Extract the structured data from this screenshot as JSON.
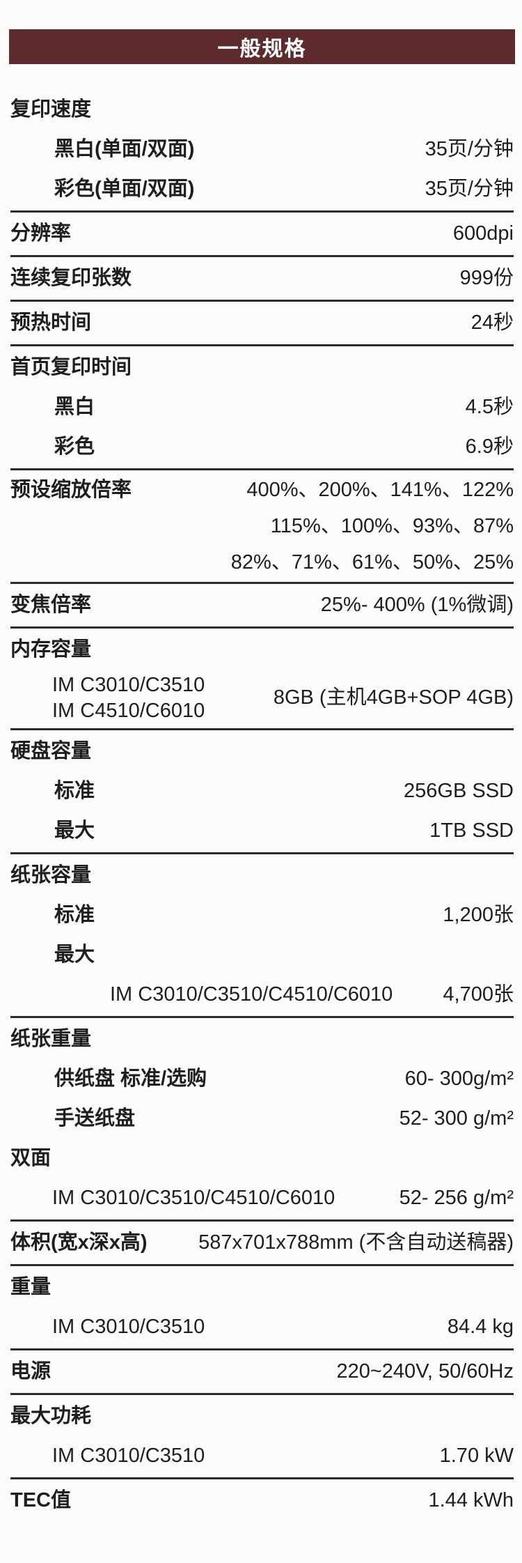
{
  "colors": {
    "page_bg": "#fcfbfa",
    "text": "#1e1e1c",
    "divider": "#2b2b29",
    "banner_bg": "#5d2b2e",
    "banner_text": "#ffffff"
  },
  "banner": {
    "label": "一般规格"
  },
  "spec_table": {
    "rows": [
      {
        "kind": "section",
        "label": "复印速度"
      },
      {
        "kind": "sub",
        "label": "黑白(单面/双面)",
        "value": "35页/分钟"
      },
      {
        "kind": "sub",
        "label": "彩色(单面/双面)",
        "value": "35页/分钟"
      },
      {
        "kind": "divider"
      },
      {
        "kind": "section",
        "label": "分辨率",
        "value": "600dpi"
      },
      {
        "kind": "divider"
      },
      {
        "kind": "section",
        "label": "连续复印张数",
        "value": "999份"
      },
      {
        "kind": "divider"
      },
      {
        "kind": "section",
        "label": "预热时间",
        "value": "24秒"
      },
      {
        "kind": "divider"
      },
      {
        "kind": "section",
        "label": "首页复印时间"
      },
      {
        "kind": "sub",
        "label": "黑白",
        "value": "4.5秒"
      },
      {
        "kind": "sub",
        "label": "彩色",
        "value": "6.9秒"
      },
      {
        "kind": "divider"
      },
      {
        "kind": "multiline",
        "label": "预设缩放倍率",
        "value_lines": [
          "400%、200%、141%、122%",
          "115%、100%、93%、87%",
          "82%、71%、61%、50%、25%"
        ]
      },
      {
        "kind": "divider"
      },
      {
        "kind": "section",
        "label": "变焦倍率",
        "value": "25%- 400% (1%微调)"
      },
      {
        "kind": "divider"
      },
      {
        "kind": "section",
        "label": "内存容量"
      },
      {
        "kind": "group",
        "labels": [
          "IM C3010/C3510",
          "IM C4510/C6010"
        ],
        "value": "8GB (主机4GB+SOP 4GB)"
      },
      {
        "kind": "divider"
      },
      {
        "kind": "section",
        "label": "硬盘容量"
      },
      {
        "kind": "sub",
        "label": "标准",
        "value": "256GB SSD"
      },
      {
        "kind": "sub",
        "label": "最大",
        "value": "1TB SSD"
      },
      {
        "kind": "divider"
      },
      {
        "kind": "section",
        "label": "纸张容量"
      },
      {
        "kind": "sub",
        "label": "标准",
        "value": "1,200张"
      },
      {
        "kind": "sub",
        "label": "最大"
      },
      {
        "kind": "model2",
        "label": "IM C3010/C3510/C4510/C6010",
        "value": "4,700张"
      },
      {
        "kind": "divider"
      },
      {
        "kind": "section",
        "label": "纸张重量"
      },
      {
        "kind": "sub",
        "label": "供纸盘 标准/选购",
        "value": "60- 300g/m²"
      },
      {
        "kind": "sub",
        "label": "手送纸盘",
        "value": "52- 300 g/m²"
      },
      {
        "kind": "section",
        "label": "双面"
      },
      {
        "kind": "model",
        "label": "IM C3010/C3510/C4510/C6010",
        "value": "52- 256 g/m²"
      },
      {
        "kind": "divider"
      },
      {
        "kind": "section",
        "label": "体积(宽x深x高)",
        "value": "587x701x788mm (不含自动送稿器)"
      },
      {
        "kind": "divider"
      },
      {
        "kind": "section",
        "label": "重量"
      },
      {
        "kind": "model",
        "label": "IM C3010/C3510",
        "value": "84.4 kg"
      },
      {
        "kind": "divider"
      },
      {
        "kind": "section",
        "label": "电源",
        "value": "220~240V, 50/60Hz"
      },
      {
        "kind": "divider"
      },
      {
        "kind": "section",
        "label": "最大功耗"
      },
      {
        "kind": "model",
        "label": "IM C3010/C3510",
        "value": "1.70 kW"
      },
      {
        "kind": "divider"
      },
      {
        "kind": "section",
        "label": "TEC值",
        "value": "1.44 kWh"
      }
    ]
  }
}
